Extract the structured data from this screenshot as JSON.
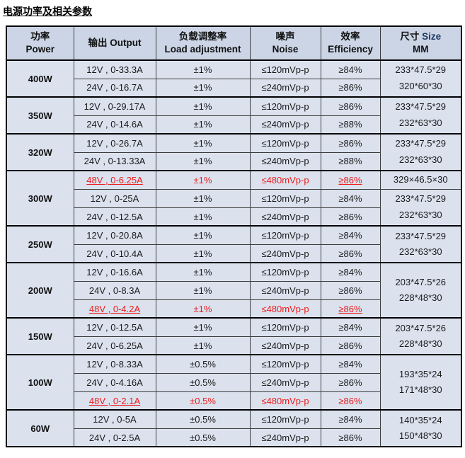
{
  "title": "电源功率及相关参数",
  "colors": {
    "header_bg": "#cbd5e6",
    "row_bg": "#dbe2ee",
    "red": "#ed1c1c",
    "size_accent_blue": "#1f3864",
    "border": "#000000"
  },
  "table": {
    "headers": [
      {
        "zh": "功率",
        "en": "Power"
      },
      {
        "zh": "输出",
        "en": "Output",
        "inline": true
      },
      {
        "zh": "负载调整率",
        "en": "Load adjustment"
      },
      {
        "zh": "噪声",
        "en": "Noise"
      },
      {
        "zh": "效率",
        "en": "Efficiency"
      },
      {
        "zh": "尺寸",
        "en": "Size",
        "en_accent": true,
        "inline": true,
        "sub": "MM"
      }
    ],
    "groups": [
      {
        "power": "400W",
        "rows": [
          {
            "output": "12V , 0-33.3A",
            "load": "±1%",
            "noise": "≤120mVp-p",
            "eff": "≥84%"
          },
          {
            "output": "24V , 0-16.7A",
            "load": "±1%",
            "noise": "≤240mVp-p",
            "eff": "≥86%"
          }
        ],
        "sizes": [
          {
            "rows": 2,
            "lines": [
              "233*47.5*29",
              "320*60*30"
            ]
          }
        ]
      },
      {
        "power": "350W",
        "rows": [
          {
            "output": "12V , 0-29.17A",
            "load": "±1%",
            "noise": "≤120mVp-p",
            "eff": "≥86%"
          },
          {
            "output": "24V , 0-14.6A",
            "load": "±1%",
            "noise": "≤240mVp-p",
            "eff": "≥88%"
          }
        ],
        "sizes": [
          {
            "rows": 2,
            "lines": [
              "233*47.5*29",
              "232*63*30"
            ]
          }
        ]
      },
      {
        "power": "320W",
        "rows": [
          {
            "output": "12V , 0-26.7A",
            "load": "±1%",
            "noise": "≤120mVp-p",
            "eff": "≥86%"
          },
          {
            "output": "24V , 0-13.33A",
            "load": "±1%",
            "noise": "≤240mVp-p",
            "eff": "≥88%"
          }
        ],
        "sizes": [
          {
            "rows": 2,
            "lines": [
              "233*47.5*29",
              "232*63*30"
            ]
          }
        ]
      },
      {
        "power": "300W",
        "rows": [
          {
            "output": "48V , 0-6.25A",
            "load": "±1%",
            "noise": "≤480mVp-p",
            "eff": "≥86%",
            "red": true,
            "output_underline": true,
            "eff_underline": true
          },
          {
            "output": "12V , 0-25A",
            "load": "±1%",
            "noise": "≤120mVp-p",
            "eff": "≥84%"
          },
          {
            "output": "24V , 0-12.5A",
            "load": "±1%",
            "noise": "≤240mVp-p",
            "eff": "≥86%"
          }
        ],
        "sizes": [
          {
            "rows": 1,
            "lines": [
              "329×46.5×30"
            ]
          },
          {
            "rows": 2,
            "lines": [
              "233*47.5*29",
              "232*63*30"
            ]
          }
        ]
      },
      {
        "power": "250W",
        "rows": [
          {
            "output": "12V , 0-20.8A",
            "load": "±1%",
            "noise": "≤120mVp-p",
            "eff": "≥84%"
          },
          {
            "output": "24V , 0-10.4A",
            "load": "±1%",
            "noise": "≤240mVp-p",
            "eff": "≥86%"
          }
        ],
        "sizes": [
          {
            "rows": 2,
            "lines": [
              "233*47.5*29",
              "232*63*30"
            ]
          }
        ]
      },
      {
        "power": "200W",
        "rows": [
          {
            "output": "12V , 0-16.6A",
            "load": "±1%",
            "noise": "≤120mVp-p",
            "eff": "≥84%"
          },
          {
            "output": "24V , 0-8.3A",
            "load": "±1%",
            "noise": "≤240mVp-p",
            "eff": "≥86%"
          },
          {
            "output": "48V , 0-4.2A",
            "load": "±1%",
            "noise": "≤480mVp-p",
            "eff": "≥86%",
            "red": true,
            "output_underline": true,
            "eff_underline": true
          }
        ],
        "sizes": [
          {
            "rows": 3,
            "lines": [
              "203*47.5*26",
              "228*48*30"
            ]
          }
        ]
      },
      {
        "power": "150W",
        "rows": [
          {
            "output": "12V , 0-12.5A",
            "load": "±1%",
            "noise": "≤120mVp-p",
            "eff": "≥84%"
          },
          {
            "output": "24V , 0-6.25A",
            "load": "±1%",
            "noise": "≤240mVp-p",
            "eff": "≥86%"
          }
        ],
        "sizes": [
          {
            "rows": 2,
            "lines": [
              "203*47.5*26",
              "228*48*30"
            ]
          }
        ]
      },
      {
        "power": "100W",
        "rows": [
          {
            "output": "12V , 0-8.33A",
            "load": "±0.5%",
            "noise": "≤120mVp-p",
            "eff": "≥84%"
          },
          {
            "output": "24V , 0-4.16A",
            "load": "±0.5%",
            "noise": "≤240mVp-p",
            "eff": "≥86%"
          },
          {
            "output": "48V , 0-2.1A",
            "load": "±0.5%",
            "noise": "≤480mVp-p",
            "eff": "≥86%",
            "red": true,
            "output_underline": true
          }
        ],
        "sizes": [
          {
            "rows": 3,
            "lines": [
              "193*35*24",
              "171*48*30"
            ]
          }
        ]
      },
      {
        "power": "60W",
        "rows": [
          {
            "output": "12V , 0-5A",
            "load": "±0.5%",
            "noise": "≤120mVp-p",
            "eff": "≥84%"
          },
          {
            "output": "24V , 0-2.5A",
            "load": "±0.5%",
            "noise": "≤240mVp-p",
            "eff": "≥86%"
          }
        ],
        "sizes": [
          {
            "rows": 2,
            "lines": [
              "140*35*24",
              "150*48*30"
            ]
          }
        ]
      }
    ]
  }
}
